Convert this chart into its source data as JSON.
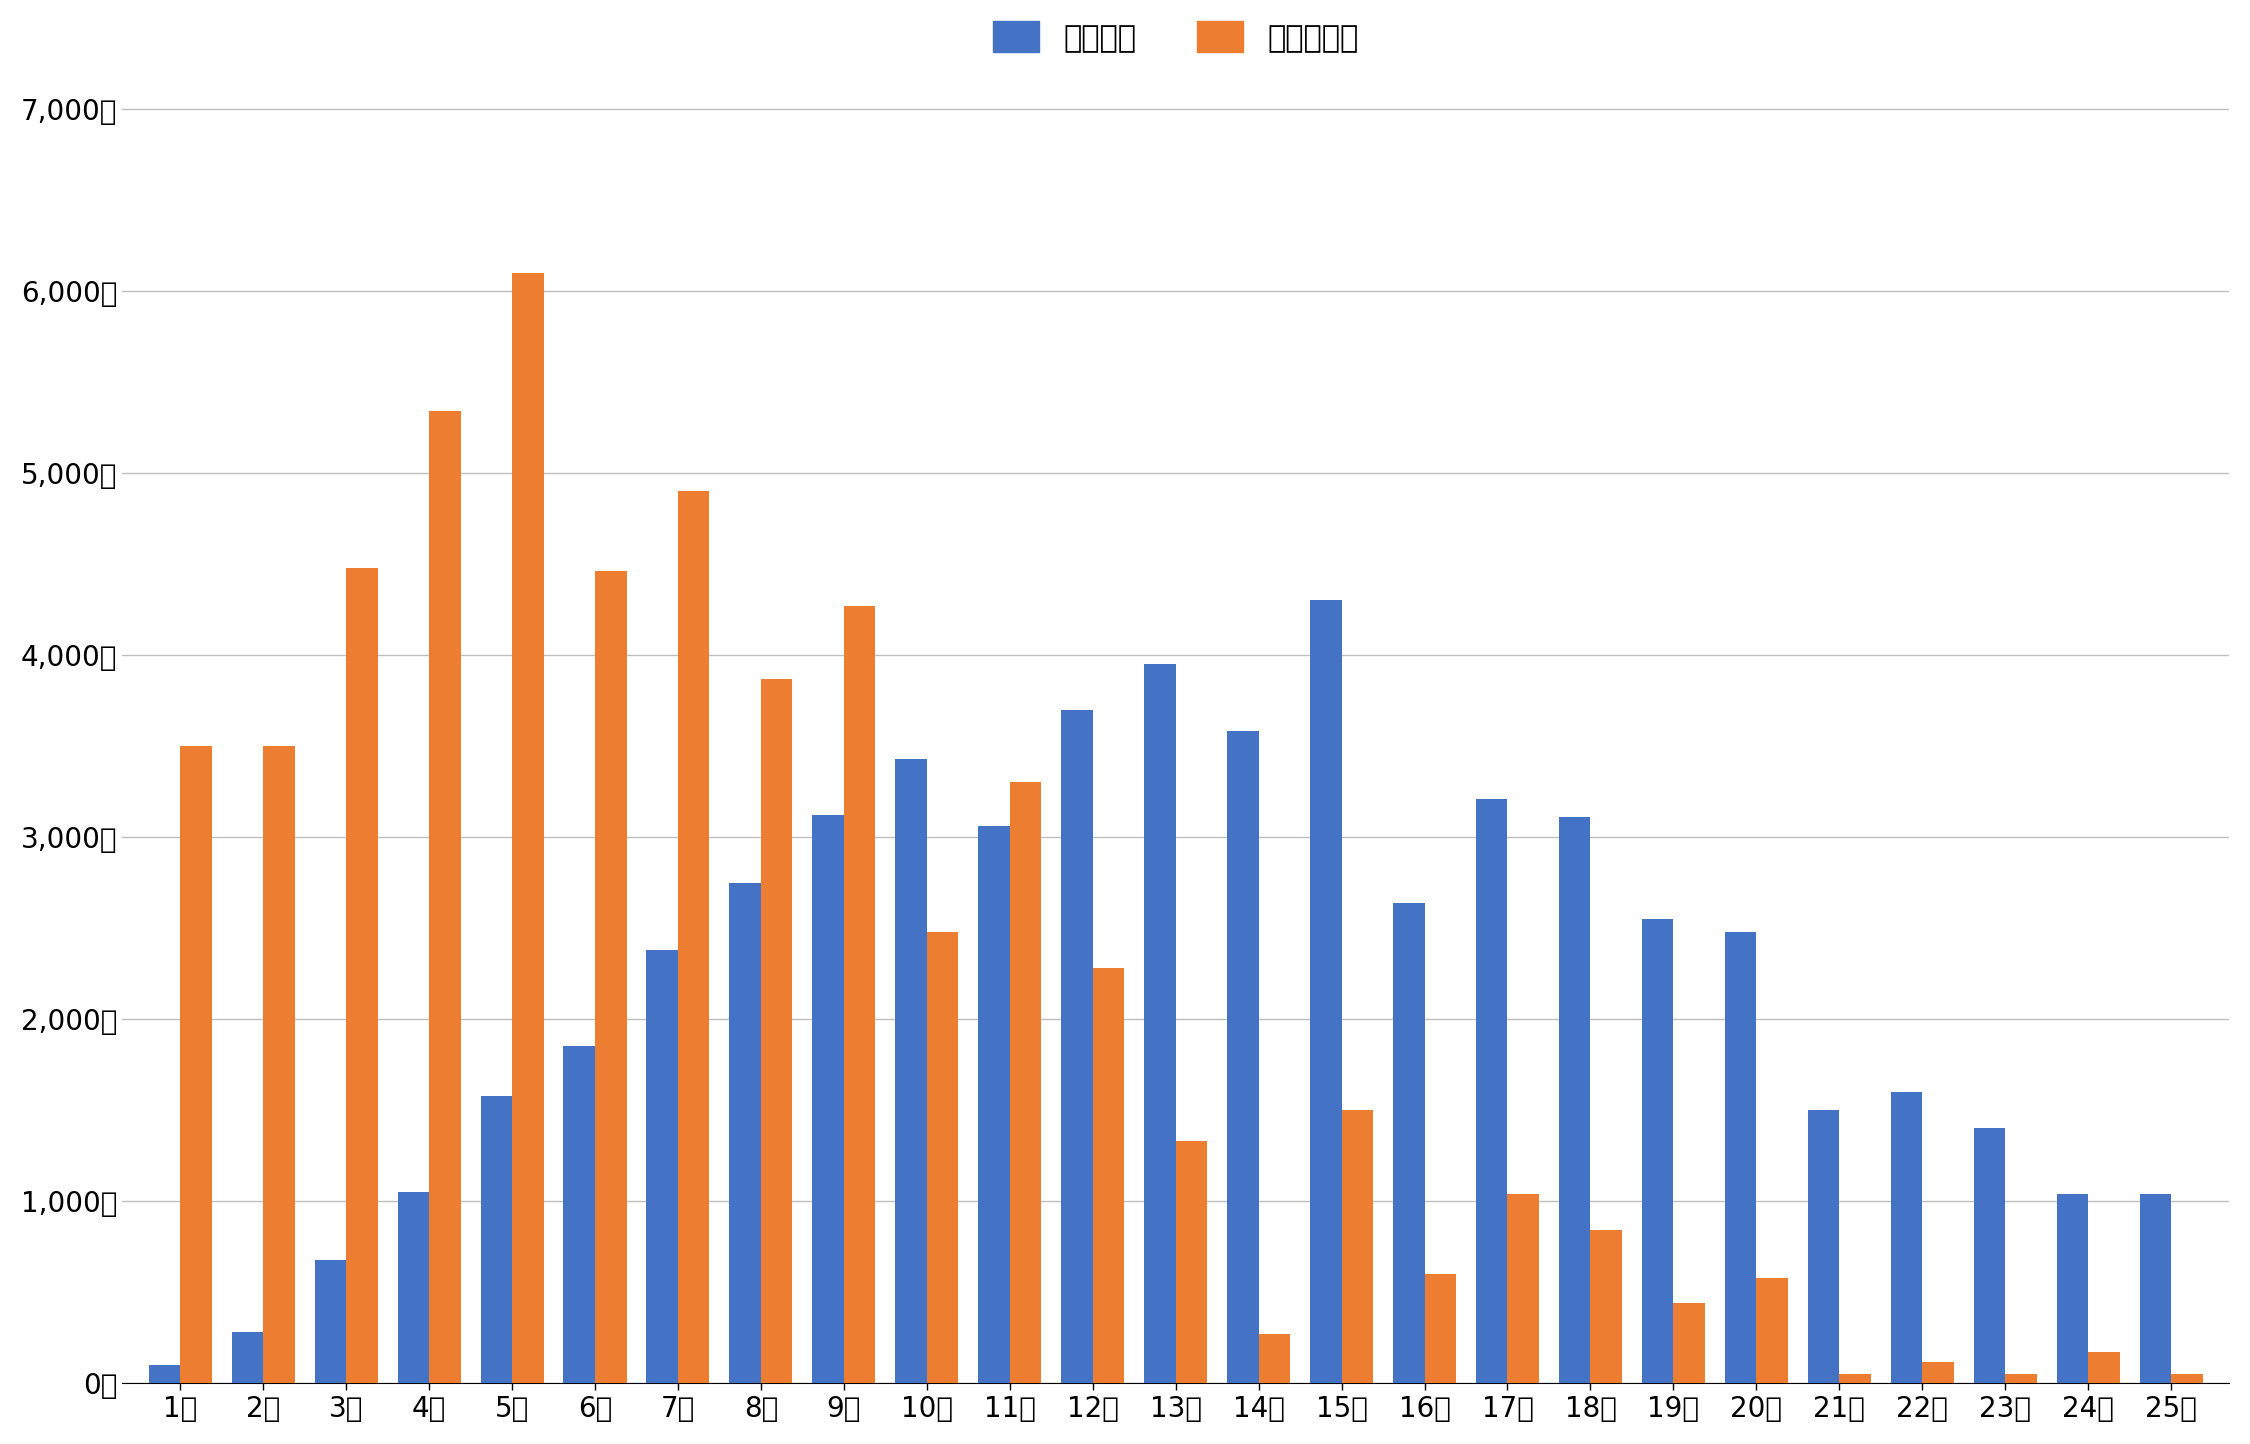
{
  "categories": [
    "1分",
    "2分",
    "3分",
    "4分",
    "5分",
    "6分",
    "7分",
    "8分",
    "9分",
    "10分",
    "11分",
    "12分",
    "13分",
    "14分",
    "15分",
    "16分",
    "17分",
    "18分",
    "19分",
    "20分",
    "21分",
    "22分",
    "23分",
    "24分",
    "25分"
  ],
  "kodate": [
    100,
    280,
    680,
    1050,
    1580,
    1850,
    2380,
    2750,
    3120,
    3430,
    3060,
    3700,
    3950,
    3580,
    4300,
    2640,
    3210,
    3110,
    2550,
    2480,
    1500,
    1600,
    1400,
    1040,
    1040
  ],
  "mansion": [
    3500,
    3500,
    4480,
    5340,
    6100,
    4460,
    4900,
    3870,
    4270,
    2480,
    3300,
    2280,
    1330,
    270,
    1500,
    600,
    1040,
    840,
    440,
    580,
    50,
    120,
    50,
    170,
    50
  ],
  "kodate_color": "#4472C4",
  "mansion_color": "#ED7D31",
  "legend_kodate": "戸建住宅",
  "legend_mansion": "マンション",
  "yticks": [
    0,
    1000,
    2000,
    3000,
    4000,
    5000,
    6000,
    7000
  ],
  "ytick_labels": [
    "0戸",
    "1,000戸",
    "2,000戸",
    "3,000戸",
    "4,000戸",
    "5,000戸",
    "6,000戸",
    "7,000戸"
  ],
  "ylim": [
    0,
    7200
  ],
  "background_color": "#FFFFFF",
  "grid_color": "#BFBFBF",
  "bar_width": 0.38
}
